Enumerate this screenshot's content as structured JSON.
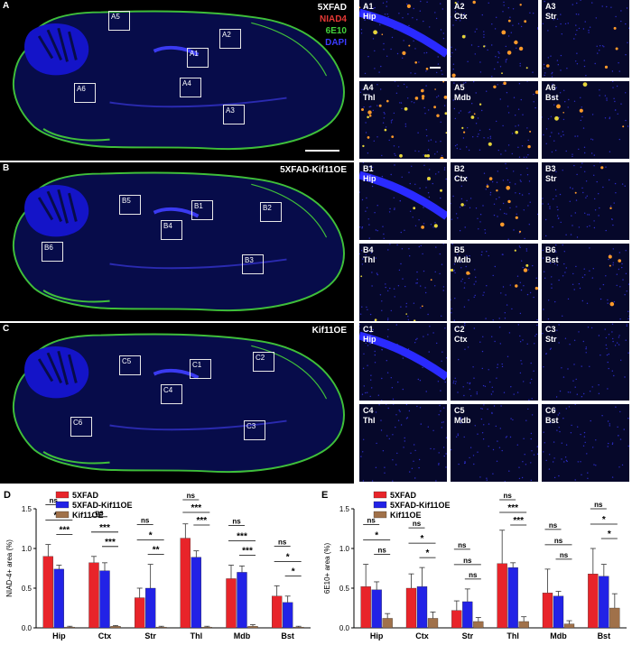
{
  "figure": {
    "rows": [
      {
        "letter": "A",
        "label": "5XFAD",
        "stains": [
          "NIAD4",
          "6E10",
          "DAPI"
        ],
        "rois": [
          "A1",
          "A2",
          "A3",
          "A4",
          "A5",
          "A6"
        ],
        "zooms": [
          {
            "id": "A1",
            "region": "Hip"
          },
          {
            "id": "A2",
            "region": "Ctx"
          },
          {
            "id": "A3",
            "region": "Str"
          },
          {
            "id": "A4",
            "region": "Thl"
          },
          {
            "id": "A5",
            "region": "Mdb"
          },
          {
            "id": "A6",
            "region": "Bst"
          }
        ]
      },
      {
        "letter": "B",
        "label": "5XFAD-Kif11OE",
        "stains": [],
        "rois": [
          "B1",
          "B2",
          "B3",
          "B4",
          "B5",
          "B6"
        ],
        "zooms": [
          {
            "id": "B1",
            "region": "Hip"
          },
          {
            "id": "B2",
            "region": "Ctx"
          },
          {
            "id": "B3",
            "region": "Str"
          },
          {
            "id": "B4",
            "region": "Thl"
          },
          {
            "id": "B5",
            "region": "Mdb"
          },
          {
            "id": "B6",
            "region": "Bst"
          }
        ]
      },
      {
        "letter": "C",
        "label": "Kif11OE",
        "stains": [],
        "rois": [
          "C1",
          "C2",
          "C3",
          "C4",
          "C5",
          "C6"
        ],
        "zooms": [
          {
            "id": "C1",
            "region": "Hip"
          },
          {
            "id": "C2",
            "region": "Ctx"
          },
          {
            "id": "C3",
            "region": "Str"
          },
          {
            "id": "C4",
            "region": "Thl"
          },
          {
            "id": "C5",
            "region": "Mdb"
          },
          {
            "id": "C6",
            "region": "Bst"
          }
        ]
      }
    ],
    "stain_colors": {
      "NIAD4": "#e53935",
      "6E10": "#43d13b",
      "DAPI": "#3b3bff"
    }
  },
  "chart_data": [
    {
      "panel": "D",
      "type": "bar",
      "title": "",
      "ylabel": "NIAD-4+ area (%)",
      "categories": [
        "Hip",
        "Ctx",
        "Str",
        "Thl",
        "Mdb",
        "Bst"
      ],
      "ylim": [
        0,
        1.5
      ],
      "yticks": [
        "0.0",
        "0.5",
        "1.0",
        "1.5"
      ],
      "series": [
        {
          "name": "5XFAD",
          "color": "#e8242a",
          "values": [
            0.9,
            0.82,
            0.38,
            1.13,
            0.62,
            0.4
          ],
          "errors": [
            0.15,
            0.08,
            0.12,
            0.18,
            0.17,
            0.13
          ]
        },
        {
          "name": "5XFAD-Kif11OE",
          "color": "#2222e6",
          "values": [
            0.74,
            0.72,
            0.5,
            0.89,
            0.7,
            0.32
          ],
          "errors": [
            0.05,
            0.1,
            0.3,
            0.08,
            0.08,
            0.08
          ]
        },
        {
          "name": "Kif11OE",
          "color": "#a0714a",
          "values": [
            0.01,
            0.02,
            0.01,
            0.01,
            0.02,
            0.01
          ],
          "errors": [
            0.01,
            0.01,
            0.01,
            0.01,
            0.02,
            0.01
          ]
        }
      ],
      "significance": [
        [
          "ns",
          "***",
          "***"
        ],
        [
          "ns",
          "***",
          "***"
        ],
        [
          "ns",
          "*",
          "**"
        ],
        [
          "ns",
          "***",
          "***"
        ],
        [
          "ns",
          "***",
          "***"
        ],
        [
          "ns",
          "*",
          "*"
        ]
      ],
      "legend": "top-left"
    },
    {
      "panel": "E",
      "type": "bar",
      "title": "",
      "ylabel": "6E10+ area (%)",
      "categories": [
        "Hip",
        "Ctx",
        "Str",
        "Thl",
        "Mdb",
        "Bst"
      ],
      "ylim": [
        0,
        1.5
      ],
      "yticks": [
        "0.0",
        "0.5",
        "1.0",
        "1.5"
      ],
      "series": [
        {
          "name": "5XFAD",
          "color": "#e8242a",
          "values": [
            0.52,
            0.5,
            0.22,
            0.81,
            0.44,
            0.68
          ],
          "errors": [
            0.28,
            0.18,
            0.12,
            0.42,
            0.3,
            0.32
          ]
        },
        {
          "name": "5XFAD-Kif11OE",
          "color": "#2222e6",
          "values": [
            0.48,
            0.52,
            0.33,
            0.76,
            0.4,
            0.65
          ],
          "errors": [
            0.1,
            0.24,
            0.16,
            0.06,
            0.06,
            0.15
          ]
        },
        {
          "name": "Kif11OE",
          "color": "#a0714a",
          "values": [
            0.12,
            0.12,
            0.08,
            0.08,
            0.05,
            0.25
          ],
          "errors": [
            0.06,
            0.08,
            0.05,
            0.06,
            0.04,
            0.18
          ]
        }
      ],
      "significance": [
        [
          "ns",
          "*",
          "ns"
        ],
        [
          "ns",
          "*",
          "*"
        ],
        [
          "ns",
          "ns",
          "ns"
        ],
        [
          "ns",
          "***",
          "***"
        ],
        [
          "ns",
          "ns",
          "ns"
        ],
        [
          "ns",
          "*",
          "*"
        ]
      ],
      "legend": "top-left"
    }
  ]
}
